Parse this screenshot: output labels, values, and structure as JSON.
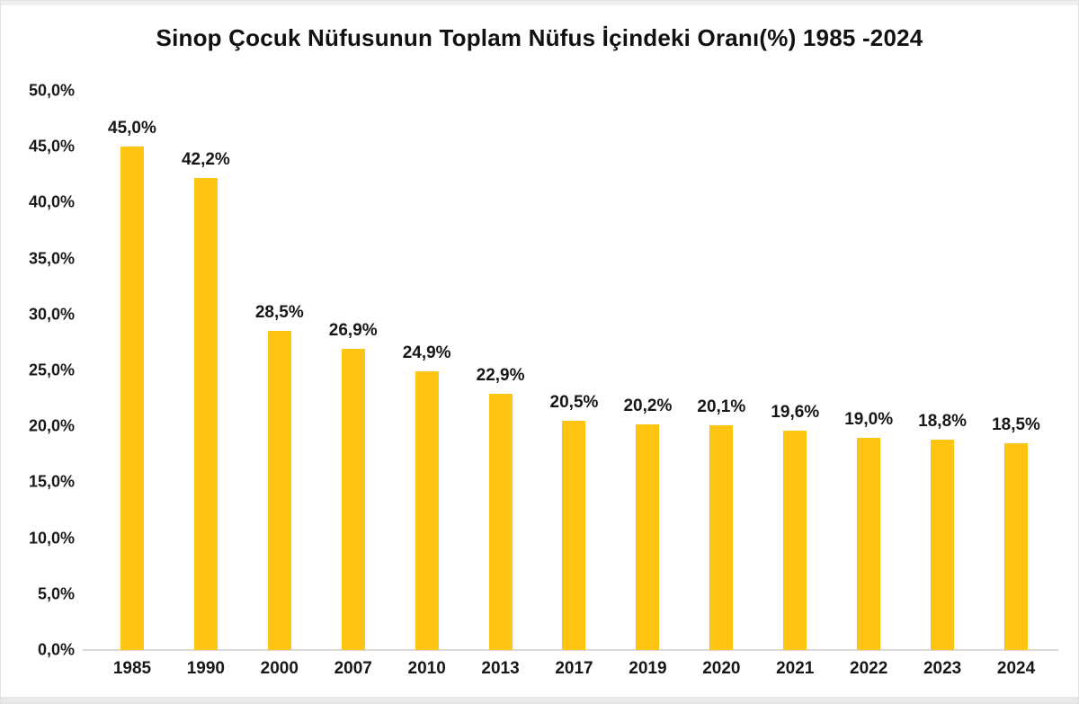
{
  "chart_data": {
    "type": "bar",
    "title": "Sinop Çocuk Nüfusunun Toplam Nüfus İçindeki Oranı(%) 1985 -2024",
    "categories": [
      "1985",
      "1990",
      "2000",
      "2007",
      "2010",
      "2013",
      "2017",
      "2019",
      "2020",
      "2021",
      "2022",
      "2023",
      "2024"
    ],
    "values": [
      45.0,
      42.2,
      28.5,
      26.9,
      24.9,
      22.9,
      20.5,
      20.2,
      20.1,
      19.6,
      19.0,
      18.8,
      18.5
    ],
    "value_labels": [
      "45,0%",
      "42,2%",
      "28,5%",
      "26,9%",
      "24,9%",
      "22,9%",
      "20,5%",
      "20,2%",
      "20,1%",
      "19,6%",
      "19,0%",
      "18,8%",
      "18,5%"
    ],
    "y_ticks": [
      {
        "value": 50,
        "label": "50,0%"
      },
      {
        "value": 45,
        "label": "45,0%"
      },
      {
        "value": 40,
        "label": "40,0%"
      },
      {
        "value": 35,
        "label": "35,0%"
      },
      {
        "value": 30,
        "label": "30,0%"
      },
      {
        "value": 25,
        "label": "25,0%"
      },
      {
        "value": 20,
        "label": "20,0%"
      },
      {
        "value": 15,
        "label": "15,0%"
      },
      {
        "value": 10,
        "label": "10,0%"
      },
      {
        "value": 5,
        "label": "5,0%"
      },
      {
        "value": 0,
        "label": "0,0%"
      }
    ],
    "xlabel": "",
    "ylabel": "",
    "ylim": [
      0,
      50
    ],
    "grid": false,
    "legend_position": "none",
    "bar_color": "#FFC412",
    "axis_line_color": "#d9d9d9",
    "text_color": "#171717"
  }
}
